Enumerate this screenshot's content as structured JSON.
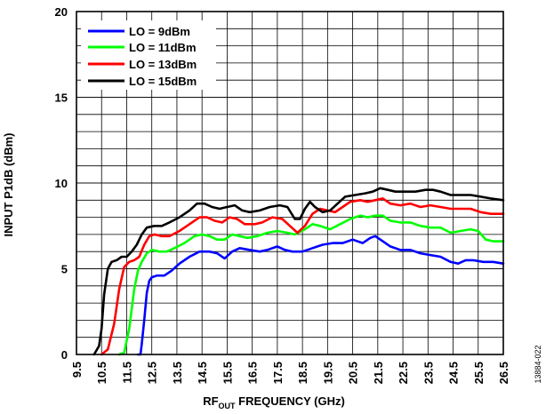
{
  "figure_id": "13884-022",
  "chart_data": {
    "type": "line",
    "title": "",
    "xlabel_main": "RF",
    "xlabel_sub": "OUT",
    "xlabel_rest": " FREQUENCY (GHz)",
    "ylabel": "INPUT P1dB (dBm)",
    "xlim": [
      9.5,
      26.5
    ],
    "ylim": [
      0,
      20
    ],
    "x_ticks": [
      "9.5",
      "10.5",
      "11.5",
      "12.5",
      "13.5",
      "14.5",
      "15.5",
      "16.5",
      "17.5",
      "18.5",
      "19.5",
      "20.5",
      "21.5",
      "22.5",
      "23.5",
      "24.5",
      "25.5",
      "26.5"
    ],
    "y_ticks": [
      "0",
      "5",
      "10",
      "15",
      "20"
    ],
    "grid": true,
    "legend_position": "top-left",
    "series": [
      {
        "name": "LO = 9dBm",
        "color": "#0000ff",
        "points": [
          [
            11.95,
            0
          ],
          [
            12.05,
            0
          ],
          [
            12.1,
            0.6
          ],
          [
            12.2,
            2
          ],
          [
            12.3,
            3.6
          ],
          [
            12.4,
            4.3
          ],
          [
            12.5,
            4.5
          ],
          [
            12.7,
            4.6
          ],
          [
            13,
            4.6
          ],
          [
            13.3,
            4.9
          ],
          [
            13.6,
            5.3
          ],
          [
            14,
            5.7
          ],
          [
            14.4,
            6.0
          ],
          [
            14.8,
            6.0
          ],
          [
            15.1,
            5.9
          ],
          [
            15.4,
            5.6
          ],
          [
            15.7,
            6.0
          ],
          [
            16,
            6.2
          ],
          [
            16.4,
            6.1
          ],
          [
            16.8,
            6.0
          ],
          [
            17.1,
            6.1
          ],
          [
            17.5,
            6.3
          ],
          [
            17.8,
            6.1
          ],
          [
            18.1,
            6.0
          ],
          [
            18.5,
            6.0
          ],
          [
            18.9,
            6.2
          ],
          [
            19.3,
            6.4
          ],
          [
            19.7,
            6.5
          ],
          [
            20.1,
            6.5
          ],
          [
            20.5,
            6.7
          ],
          [
            20.9,
            6.5
          ],
          [
            21.2,
            6.8
          ],
          [
            21.4,
            6.9
          ],
          [
            21.7,
            6.6
          ],
          [
            22,
            6.3
          ],
          [
            22.4,
            6.1
          ],
          [
            22.8,
            6.1
          ],
          [
            23.2,
            5.9
          ],
          [
            23.6,
            5.8
          ],
          [
            24,
            5.7
          ],
          [
            24.4,
            5.4
          ],
          [
            24.7,
            5.3
          ],
          [
            25,
            5.5
          ],
          [
            25.3,
            5.5
          ],
          [
            25.7,
            5.4
          ],
          [
            26.1,
            5.4
          ],
          [
            26.5,
            5.3
          ]
        ]
      },
      {
        "name": "LO = 11dBm",
        "color": "#00ff00",
        "points": [
          [
            11.2,
            0
          ],
          [
            11.4,
            0.1
          ],
          [
            11.6,
            1.5
          ],
          [
            11.8,
            3.8
          ],
          [
            11.95,
            4.9
          ],
          [
            12.1,
            5.4
          ],
          [
            12.3,
            5.9
          ],
          [
            12.5,
            6.1
          ],
          [
            12.8,
            6.0
          ],
          [
            13.1,
            6.0
          ],
          [
            13.4,
            6.2
          ],
          [
            13.8,
            6.5
          ],
          [
            14.2,
            6.9
          ],
          [
            14.5,
            7.0
          ],
          [
            14.8,
            6.9
          ],
          [
            15.1,
            6.7
          ],
          [
            15.4,
            6.7
          ],
          [
            15.7,
            7.0
          ],
          [
            16,
            6.9
          ],
          [
            16.3,
            6.8
          ],
          [
            16.7,
            6.9
          ],
          [
            17.1,
            7.1
          ],
          [
            17.5,
            7.2
          ],
          [
            17.9,
            7.1
          ],
          [
            18.2,
            7.0
          ],
          [
            18.6,
            7.3
          ],
          [
            18.9,
            7.6
          ],
          [
            19.2,
            7.5
          ],
          [
            19.6,
            7.3
          ],
          [
            20,
            7.6
          ],
          [
            20.4,
            7.9
          ],
          [
            20.8,
            8.1
          ],
          [
            21.1,
            8.0
          ],
          [
            21.4,
            8.1
          ],
          [
            21.7,
            8.1
          ],
          [
            22,
            7.8
          ],
          [
            22.4,
            7.7
          ],
          [
            22.8,
            7.7
          ],
          [
            23.2,
            7.5
          ],
          [
            23.6,
            7.4
          ],
          [
            24,
            7.4
          ],
          [
            24.4,
            7.1
          ],
          [
            24.8,
            7.2
          ],
          [
            25.2,
            7.3
          ],
          [
            25.5,
            7.2
          ],
          [
            25.8,
            6.7
          ],
          [
            26.1,
            6.6
          ],
          [
            26.5,
            6.6
          ]
        ]
      },
      {
        "name": "LO = 13dBm",
        "color": "#ff0000",
        "points": [
          [
            10.5,
            0
          ],
          [
            10.75,
            0.3
          ],
          [
            11,
            1.8
          ],
          [
            11.2,
            3.8
          ],
          [
            11.4,
            5.1
          ],
          [
            11.6,
            5.4
          ],
          [
            11.8,
            5.5
          ],
          [
            12,
            5.7
          ],
          [
            12.2,
            6.4
          ],
          [
            12.4,
            6.9
          ],
          [
            12.6,
            7.0
          ],
          [
            12.9,
            6.9
          ],
          [
            13.2,
            6.9
          ],
          [
            13.6,
            7.2
          ],
          [
            14,
            7.6
          ],
          [
            14.4,
            8.0
          ],
          [
            14.7,
            8.0
          ],
          [
            15,
            7.8
          ],
          [
            15.3,
            7.7
          ],
          [
            15.6,
            8.0
          ],
          [
            15.9,
            7.9
          ],
          [
            16.2,
            7.6
          ],
          [
            16.6,
            7.6
          ],
          [
            16.9,
            7.7
          ],
          [
            17.3,
            8.0
          ],
          [
            17.7,
            7.9
          ],
          [
            18,
            7.5
          ],
          [
            18.3,
            7.1
          ],
          [
            18.6,
            7.5
          ],
          [
            18.9,
            8.2
          ],
          [
            19.2,
            8.5
          ],
          [
            19.5,
            8.4
          ],
          [
            19.8,
            8.3
          ],
          [
            20.1,
            8.6
          ],
          [
            20.4,
            8.9
          ],
          [
            20.8,
            9.0
          ],
          [
            21.1,
            8.9
          ],
          [
            21.4,
            9.0
          ],
          [
            21.7,
            9.1
          ],
          [
            22,
            8.8
          ],
          [
            22.4,
            8.7
          ],
          [
            22.8,
            8.8
          ],
          [
            23.2,
            8.6
          ],
          [
            23.6,
            8.7
          ],
          [
            24,
            8.6
          ],
          [
            24.4,
            8.5
          ],
          [
            24.8,
            8.5
          ],
          [
            25.2,
            8.5
          ],
          [
            25.6,
            8.3
          ],
          [
            26,
            8.2
          ],
          [
            26.5,
            8.2
          ]
        ]
      },
      {
        "name": "LO = 15dBm",
        "color": "#000000",
        "points": [
          [
            10.2,
            0
          ],
          [
            10.4,
            0.5
          ],
          [
            10.5,
            1.5
          ],
          [
            10.6,
            3.5
          ],
          [
            10.75,
            5.0
          ],
          [
            10.9,
            5.4
          ],
          [
            11.1,
            5.5
          ],
          [
            11.3,
            5.7
          ],
          [
            11.5,
            5.7
          ],
          [
            11.7,
            6.0
          ],
          [
            11.9,
            6.4
          ],
          [
            12.1,
            7.0
          ],
          [
            12.3,
            7.4
          ],
          [
            12.6,
            7.5
          ],
          [
            12.9,
            7.5
          ],
          [
            13.2,
            7.7
          ],
          [
            13.6,
            8.0
          ],
          [
            14,
            8.4
          ],
          [
            14.3,
            8.8
          ],
          [
            14.6,
            8.8
          ],
          [
            14.9,
            8.6
          ],
          [
            15.2,
            8.5
          ],
          [
            15.5,
            8.6
          ],
          [
            15.8,
            8.7
          ],
          [
            16.1,
            8.4
          ],
          [
            16.4,
            8.3
          ],
          [
            16.8,
            8.4
          ],
          [
            17.2,
            8.6
          ],
          [
            17.6,
            8.7
          ],
          [
            17.9,
            8.6
          ],
          [
            18.2,
            7.9
          ],
          [
            18.4,
            7.9
          ],
          [
            18.6,
            8.5
          ],
          [
            18.8,
            8.9
          ],
          [
            19,
            8.6
          ],
          [
            19.3,
            8.3
          ],
          [
            19.6,
            8.4
          ],
          [
            19.9,
            8.8
          ],
          [
            20.2,
            9.2
          ],
          [
            20.6,
            9.3
          ],
          [
            21,
            9.4
          ],
          [
            21.3,
            9.5
          ],
          [
            21.6,
            9.7
          ],
          [
            21.9,
            9.6
          ],
          [
            22.2,
            9.5
          ],
          [
            22.6,
            9.5
          ],
          [
            23,
            9.5
          ],
          [
            23.4,
            9.6
          ],
          [
            23.7,
            9.6
          ],
          [
            24,
            9.5
          ],
          [
            24.4,
            9.3
          ],
          [
            24.8,
            9.3
          ],
          [
            25.2,
            9.3
          ],
          [
            25.6,
            9.2
          ],
          [
            26,
            9.1
          ],
          [
            26.5,
            9.0
          ]
        ]
      }
    ]
  }
}
